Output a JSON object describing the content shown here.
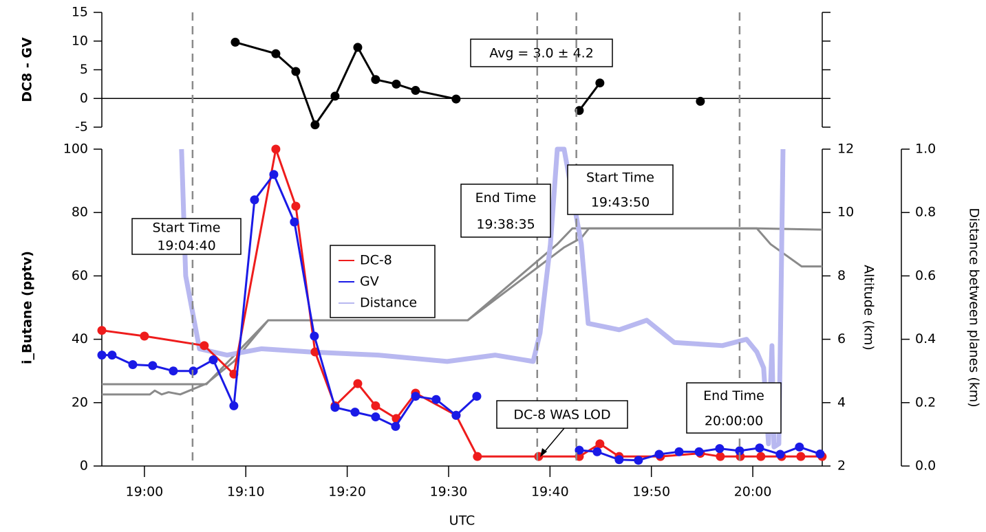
{
  "chart_data": [
    {
      "type": "line",
      "ylabel": "DC8 - GV",
      "xlim": [
        1135.8,
        1206.85
      ],
      "ylim": [
        -5,
        15
      ],
      "yticks": [
        15,
        10,
        5,
        0,
        -5
      ],
      "annotations": [
        {
          "lines": [
            "Avg = 3.0 ± 4.2"
          ]
        }
      ],
      "series": [
        {
          "color": "#000000",
          "markers": true,
          "x": [
            1148.96,
            1152.96,
            1154.93,
            1156.83,
            1158.8,
            1161.04,
            1162.8,
            1164.84,
            1166.74,
            1170.74,
            1176,
            1182.89,
            1184.92,
            1190,
            1194.83
          ],
          "values": [
            9.8,
            7.8,
            4.7,
            -4.6,
            0.4,
            8.9,
            3.3,
            2.5,
            1.4,
            -0.1,
            null,
            -2.1,
            2.7,
            null,
            -0.5
          ]
        }
      ]
    },
    {
      "type": "line",
      "xlabel": "UTC",
      "ylabel": "i_Butane (pptv)",
      "y2label": "Altitude (km)",
      "y3label": "Distance between planes (km)",
      "xlim": [
        1135.8,
        1206.85
      ],
      "xticks": [
        {
          "value": 1140,
          "label": "19:00"
        },
        {
          "value": 1150,
          "label": "19:10"
        },
        {
          "value": 1160,
          "label": "19:20"
        },
        {
          "value": 1170,
          "label": "19:30"
        },
        {
          "value": 1180,
          "label": "19:40"
        },
        {
          "value": 1190,
          "label": "19:50"
        },
        {
          "value": 1200,
          "label": "20:00"
        }
      ],
      "ylim": [
        0,
        100
      ],
      "yticks": [
        0,
        20,
        40,
        60,
        80,
        100
      ],
      "y2lim": [
        2,
        12
      ],
      "y2ticks": [
        2,
        4,
        6,
        8,
        10,
        12
      ],
      "y3lim": [
        0,
        1
      ],
      "y3ticks": [
        {
          "value": 0,
          "label": "0.0"
        },
        0.2,
        0.4,
        0.6,
        0.8,
        {
          "value": 1,
          "label": "1.0"
        }
      ],
      "vlines": [
        1144.75,
        1178.74,
        1182.6,
        1198.7
      ],
      "annotations": [
        {
          "lines": [
            "Start Time",
            "19:04:40"
          ]
        },
        {
          "lines": [
            "End Time",
            "19:38:35"
          ]
        },
        {
          "lines": [
            "Start Time",
            "19:43:50"
          ]
        },
        {
          "lines": [
            "End Time",
            "20:00:00"
          ]
        },
        {
          "lines": [
            "DC-8 WAS LOD"
          ]
        }
      ],
      "series": [
        {
          "color": "#8a8a8a",
          "axis": "y2",
          "markers": false,
          "x": [
            1135.8,
            1146.11,
            1152.21,
            1171.89,
            1180.71,
            1182.21,
            1200.4,
            1206.85
          ],
          "values": [
            4.58,
            4.58,
            6.6,
            6.6,
            9.0,
            9.5,
            9.5,
            9.46
          ]
        },
        {
          "color": "#8a8a8a",
          "axis": "y2",
          "markers": false,
          "x": [
            1135.8,
            1140.54,
            1141.02,
            1141.7,
            1142.38,
            1143.53,
            1146.11,
            1148.82,
            1152.21,
            1171.89,
            1181.39,
            1183.09,
            1183.84,
            1200.4,
            1201.76,
            1204.81,
            1206.85
          ],
          "values": [
            4.26,
            4.26,
            4.38,
            4.26,
            4.33,
            4.26,
            4.6,
            5.3,
            6.6,
            6.6,
            8.9,
            9.2,
            9.5,
            9.5,
            9.0,
            8.3,
            8.3
          ]
        },
        {
          "name": "Distance",
          "color": "#b8b8f0",
          "axis": "y3",
          "markers": false,
          "x": [
            1143.66,
            1144.07,
            1145.43,
            1148.14,
            1151.54,
            1156.29,
            1163.07,
            1169.86,
            1174.61,
            1178.34,
            1179.02,
            1180.04,
            1180.72,
            1181.39,
            1183.09,
            1183.77,
            1186.82,
            1189.54,
            1192.25,
            1197.0,
            1199.38,
            1200.4,
            1201.07,
            1201.55,
            1201.89,
            1202.09,
            1202.57,
            1202.77,
            1202.98
          ],
          "values": [
            1.0,
            0.6,
            0.37,
            0.35,
            0.37,
            0.36,
            0.35,
            0.33,
            0.35,
            0.33,
            0.42,
            0.7,
            1.0,
            1.0,
            0.7,
            0.45,
            0.43,
            0.46,
            0.39,
            0.38,
            0.4,
            0.36,
            0.31,
            0.07,
            0.38,
            0.06,
            0.07,
            0.5,
            1.0
          ]
        },
        {
          "name": "DC-8",
          "color": "#ee1c1c",
          "markers": true,
          "x": [
            1135.8,
            1140,
            1145.9,
            1148.82,
            1152.96,
            1154.93,
            1156.83,
            1158.8,
            1161.04,
            1162.8,
            1164.84,
            1166.74,
            1170.74,
            1172.84,
            1178.88,
            1182.89,
            1184.92,
            1186.82,
            1190.89,
            1194.83,
            1196.8,
            1198.77,
            1200.8,
            1202.84,
            1204.74,
            1206.84
          ],
          "values": [
            42.8,
            41,
            38,
            29,
            100,
            82,
            36,
            19,
            26,
            19,
            15,
            23,
            16,
            3,
            3,
            3,
            7,
            3,
            3,
            4,
            3,
            3,
            3,
            3,
            3,
            3
          ]
        },
        {
          "name": "GV",
          "color": "#1a1ae6",
          "markers": true,
          "x": [
            1135.8,
            1136.81,
            1138.85,
            1140.81,
            1142.85,
            1144.82,
            1146.79,
            1148.82,
            1150.86,
            1152.76,
            1154.79,
            1156.76,
            1158.8,
            1160.77,
            1162.8,
            1164.77,
            1166.74,
            1168.77,
            1170.74,
            1172.78,
            1177,
            1182.89,
            1184.65,
            1186.82,
            1188.72,
            1190.76,
            1192.73,
            1194.7,
            1196.73,
            1198.7,
            1200.67,
            1202.7,
            1204.6,
            1206.64
          ],
          "values": [
            35,
            35,
            32,
            31.7,
            30,
            30,
            33.5,
            19,
            84,
            92,
            77,
            41,
            18.5,
            17,
            15.5,
            12.5,
            22,
            21,
            16,
            22,
            null,
            5,
            4.5,
            2,
            1.8,
            3.7,
            4.5,
            4.5,
            5.5,
            4.8,
            5.7,
            3.7,
            6,
            3.8
          ]
        }
      ]
    }
  ]
}
